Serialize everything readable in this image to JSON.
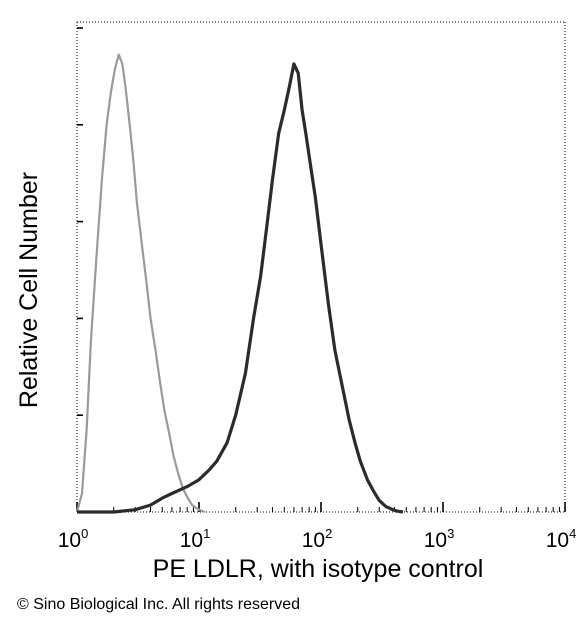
{
  "chart_data": {
    "type": "line",
    "title": "",
    "xlabel": "PE  LDLR,  with isotype control",
    "ylabel": "Relative Cell Number",
    "xscale": "log",
    "xlim": [
      1,
      10000
    ],
    "ylim": [
      0,
      1
    ],
    "xtick_labels": [
      {
        "base": "10",
        "exp": "0"
      },
      {
        "base": "10",
        "exp": "1"
      },
      {
        "base": "10",
        "exp": "2"
      },
      {
        "base": "10",
        "exp": "3"
      },
      {
        "base": "10",
        "exp": "4"
      }
    ],
    "grid": false,
    "legend": "none",
    "series": [
      {
        "color": "#9a9a9a",
        "x": [
          1.0,
          1.1,
          1.2,
          1.3,
          1.45,
          1.6,
          1.75,
          1.9,
          2.05,
          2.2,
          2.35,
          2.5,
          2.7,
          2.9,
          3.1,
          3.4,
          3.7,
          4.0,
          4.4,
          4.8,
          5.2,
          5.7,
          6.2,
          6.8,
          7.4,
          8.1,
          8.8,
          9.6,
          10.4,
          11.2
        ],
        "y": [
          0.0,
          0.04,
          0.18,
          0.37,
          0.56,
          0.72,
          0.84,
          0.91,
          0.96,
          0.99,
          0.97,
          0.92,
          0.84,
          0.76,
          0.67,
          0.58,
          0.5,
          0.42,
          0.35,
          0.28,
          0.22,
          0.17,
          0.12,
          0.08,
          0.05,
          0.03,
          0.015,
          0.008,
          0.003,
          0.0
        ]
      },
      {
        "color": "#2b2b2b",
        "x": [
          1.0,
          2.0,
          3.0,
          4.0,
          5.0,
          6.0,
          8.0,
          10.0,
          12.0,
          14.0,
          17.0,
          20.0,
          24.0,
          28.0,
          32.0,
          36.0,
          40.0,
          45.0,
          50.0,
          55.0,
          60.0,
          65.0,
          70.0,
          75.0,
          80.0,
          90.0,
          100.0,
          115.0,
          130.0,
          150.0,
          170.0,
          190.0,
          210.0,
          240.0,
          270.0,
          300.0,
          340.0,
          380.0,
          420.0,
          470.0
        ],
        "y": [
          0.0,
          0.0,
          0.005,
          0.015,
          0.03,
          0.04,
          0.055,
          0.07,
          0.09,
          0.11,
          0.15,
          0.21,
          0.3,
          0.42,
          0.51,
          0.62,
          0.72,
          0.82,
          0.87,
          0.92,
          0.97,
          0.95,
          0.87,
          0.82,
          0.77,
          0.68,
          0.58,
          0.45,
          0.35,
          0.27,
          0.2,
          0.15,
          0.11,
          0.07,
          0.045,
          0.025,
          0.012,
          0.006,
          0.002,
          0.0
        ]
      }
    ]
  },
  "footer": {
    "copyright": "© Sino Biological Inc. All rights reserved"
  }
}
